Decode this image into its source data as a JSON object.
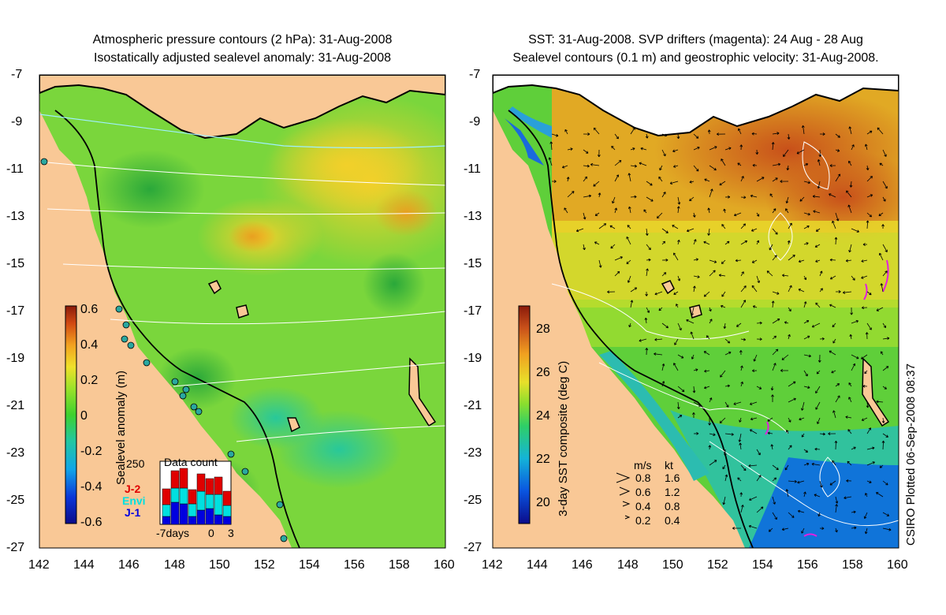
{
  "left_panel": {
    "title_line1": "Atmospheric pressure contours (2 hPa): 31-Aug-2008",
    "title_line2": "Isostatically adjusted sealevel anomaly: 31-Aug-2008",
    "colorbar": {
      "label": "Sealevel anomaly (m)",
      "ticks": [
        "0.6",
        "0.4",
        "0.2",
        "0",
        "-0.2",
        "-0.4",
        "-0.6"
      ],
      "range": [
        -0.6,
        0.6
      ]
    },
    "data_count": {
      "title": "Data count",
      "ymax_label": "250",
      "legend": [
        {
          "name": "J-2",
          "color": "#e00000"
        },
        {
          "name": "Envi",
          "color": "#00e0e0"
        },
        {
          "name": "J-1",
          "color": "#0000e0"
        }
      ],
      "x_labels": [
        "-7days",
        "0",
        "3"
      ]
    }
  },
  "right_panel": {
    "title_line1": "SST: 31-Aug-2008. SVP drifters (magenta): 24 Aug - 28 Aug",
    "title_line2": "Sealevel contours (0.1 m) and geostrophic velocity: 31-Aug-2008.",
    "colorbar": {
      "label": "3-day SST composite (deg C)",
      "ticks": [
        "28",
        "26",
        "24",
        "22",
        "20"
      ],
      "range": [
        19,
        29
      ]
    },
    "velocity_legend": {
      "header_ms": "m/s",
      "header_kt": "kt",
      "rows": [
        {
          "ms": "0.8",
          "kt": "1.6"
        },
        {
          "ms": "0.6",
          "kt": "1.2"
        },
        {
          "ms": "0.4",
          "kt": "0.8"
        },
        {
          "ms": "0.2",
          "kt": "0.4"
        }
      ]
    }
  },
  "axes": {
    "lat_labels": [
      "-7",
      "-9",
      "-11",
      "-13",
      "-15",
      "-17",
      "-19",
      "-21",
      "-23",
      "-25",
      "-27"
    ],
    "lon_labels": [
      "142",
      "144",
      "146",
      "148",
      "150",
      "152",
      "154",
      "156",
      "158",
      "160"
    ]
  },
  "credit": "CSIRO Plotted 06-Sep-2008 08:37",
  "colors": {
    "land": "#f9c896",
    "ocean_green": "#6cd33c",
    "coast": "#000000"
  }
}
